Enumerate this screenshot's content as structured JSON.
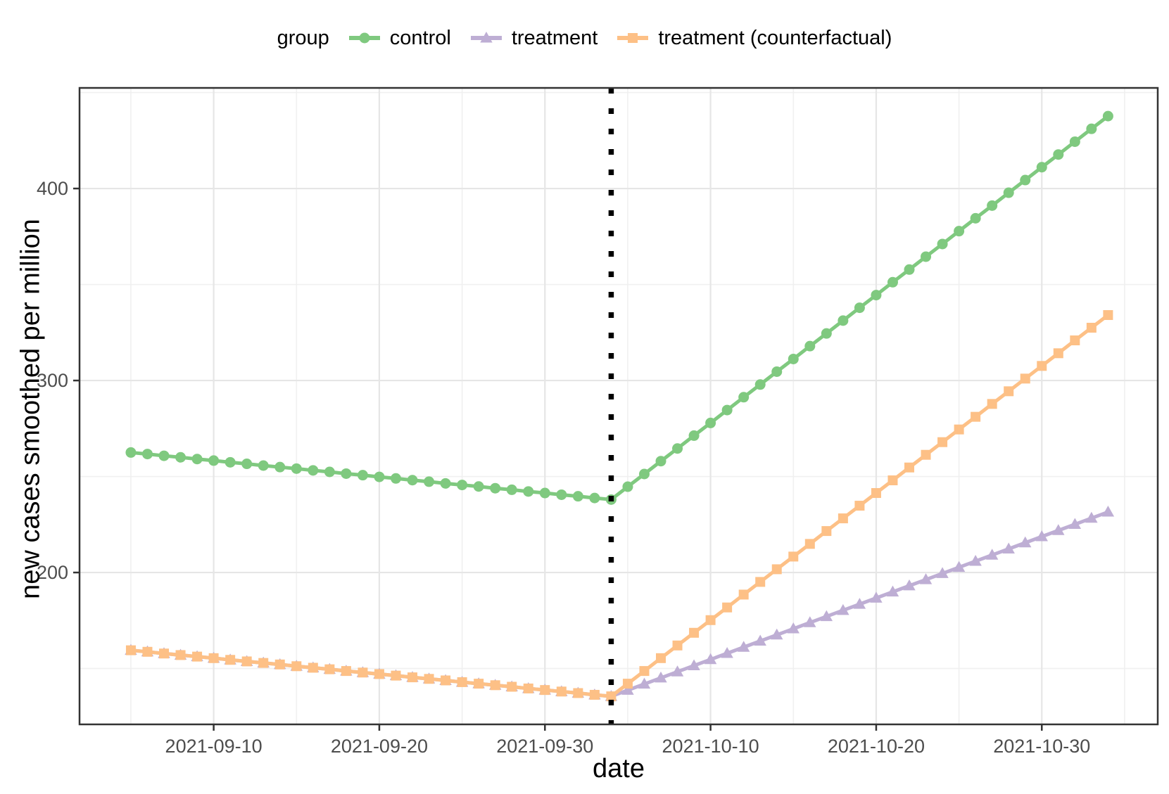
{
  "chart_data": {
    "type": "line",
    "title": "",
    "xlabel": "date",
    "ylabel": "new cases smoothed per million",
    "legend": {
      "title": "group",
      "position": "top"
    },
    "x_dates": [
      "2021-09-05",
      "2021-09-06",
      "2021-09-07",
      "2021-09-08",
      "2021-09-09",
      "2021-09-10",
      "2021-09-11",
      "2021-09-12",
      "2021-09-13",
      "2021-09-14",
      "2021-09-15",
      "2021-09-16",
      "2021-09-17",
      "2021-09-18",
      "2021-09-19",
      "2021-09-20",
      "2021-09-21",
      "2021-09-22",
      "2021-09-23",
      "2021-09-24",
      "2021-09-25",
      "2021-09-26",
      "2021-09-27",
      "2021-09-28",
      "2021-09-29",
      "2021-09-30",
      "2021-10-01",
      "2021-10-02",
      "2021-10-03",
      "2021-10-04",
      "2021-10-05",
      "2021-10-06",
      "2021-10-07",
      "2021-10-08",
      "2021-10-09",
      "2021-10-10",
      "2021-10-11",
      "2021-10-12",
      "2021-10-13",
      "2021-10-14",
      "2021-10-15",
      "2021-10-16",
      "2021-10-17",
      "2021-10-18",
      "2021-10-19",
      "2021-10-20",
      "2021-10-21",
      "2021-10-22",
      "2021-10-23",
      "2021-10-24",
      "2021-10-25",
      "2021-10-26",
      "2021-10-27",
      "2021-10-28",
      "2021-10-29",
      "2021-10-30",
      "2021-10-31",
      "2021-11-01",
      "2021-11-02",
      "2021-11-03"
    ],
    "series": [
      {
        "name": "control",
        "color": "#7FC97F",
        "marker": "circle",
        "values": [
          262.5,
          261.7,
          260.8,
          260.0,
          259.1,
          258.3,
          257.4,
          256.6,
          255.7,
          254.9,
          254.1,
          253.2,
          252.4,
          251.5,
          250.7,
          249.8,
          249.0,
          248.1,
          247.3,
          246.4,
          245.6,
          244.8,
          243.9,
          243.1,
          242.2,
          241.4,
          240.5,
          239.7,
          238.8,
          238.0,
          244.7,
          251.3,
          258.0,
          264.6,
          271.3,
          277.9,
          284.6,
          291.3,
          297.9,
          304.6,
          311.2,
          317.9,
          324.5,
          331.2,
          337.9,
          344.5,
          351.2,
          357.8,
          364.5,
          371.1,
          377.8,
          384.5,
          391.1,
          397.8,
          404.4,
          411.1,
          417.7,
          424.4,
          431.1,
          437.7
        ]
      },
      {
        "name": "treatment",
        "color": "#BEAED4",
        "marker": "triangle",
        "values": [
          159.5,
          158.7,
          157.8,
          157.0,
          156.2,
          155.4,
          154.5,
          153.7,
          152.9,
          152.1,
          151.2,
          150.4,
          149.6,
          148.7,
          147.9,
          147.1,
          146.3,
          145.4,
          144.6,
          143.8,
          142.9,
          142.1,
          141.3,
          140.5,
          139.6,
          138.8,
          138.0,
          137.2,
          136.3,
          135.5,
          138.7,
          141.9,
          145.1,
          148.3,
          151.5,
          154.7,
          157.9,
          161.1,
          164.3,
          167.5,
          170.7,
          173.9,
          177.1,
          180.3,
          183.5,
          186.7,
          189.9,
          193.1,
          196.3,
          199.5,
          202.7,
          205.9,
          209.1,
          212.3,
          215.5,
          218.7,
          221.9,
          225.1,
          228.3,
          231.5
        ]
      },
      {
        "name": "treatment (counterfactual)",
        "color": "#FDC086",
        "marker": "square",
        "values": [
          159.5,
          158.7,
          157.8,
          157.0,
          156.2,
          155.4,
          154.5,
          153.7,
          152.9,
          152.1,
          151.2,
          150.4,
          149.6,
          148.7,
          147.9,
          147.1,
          146.3,
          145.4,
          144.6,
          143.8,
          142.9,
          142.1,
          141.3,
          140.5,
          139.6,
          138.8,
          138.0,
          137.2,
          136.3,
          135.5,
          142.1,
          148.7,
          155.4,
          162.0,
          168.6,
          175.2,
          181.8,
          188.5,
          195.1,
          201.7,
          208.3,
          214.9,
          221.6,
          228.2,
          234.8,
          241.4,
          248.0,
          254.7,
          261.3,
          267.9,
          274.5,
          281.1,
          287.8,
          294.4,
          301.0,
          307.6,
          314.2,
          320.9,
          327.5,
          334.1
        ]
      }
    ],
    "intervention_line": {
      "date": "2021-10-04",
      "style": "dotted",
      "color": "#000000"
    },
    "axes": {
      "x_ticks": [
        "2021-09-10",
        "2021-09-20",
        "2021-09-30",
        "2021-10-10",
        "2021-10-20",
        "2021-10-30"
      ],
      "x_minor_ticks": [
        "2021-09-05",
        "2021-09-15",
        "2021-09-25",
        "2021-10-05",
        "2021-10-15",
        "2021-10-25",
        "2021-11-04"
      ],
      "y_ticks": [
        200,
        300,
        400
      ],
      "y_minor_ticks": [
        150,
        250,
        350,
        450
      ],
      "x_range_days": [
        -3.1,
        62.0
      ],
      "y_range": [
        120.9,
        452.4
      ],
      "grid": true
    },
    "style": {
      "major_grid_color": "#E6E6E6",
      "minor_grid_color": "#F0F0F0",
      "panel_border_color": "#333333",
      "tick_color": "#333333",
      "tick_label_color": "#4D4D4D",
      "background": "#FFFFFF"
    }
  }
}
